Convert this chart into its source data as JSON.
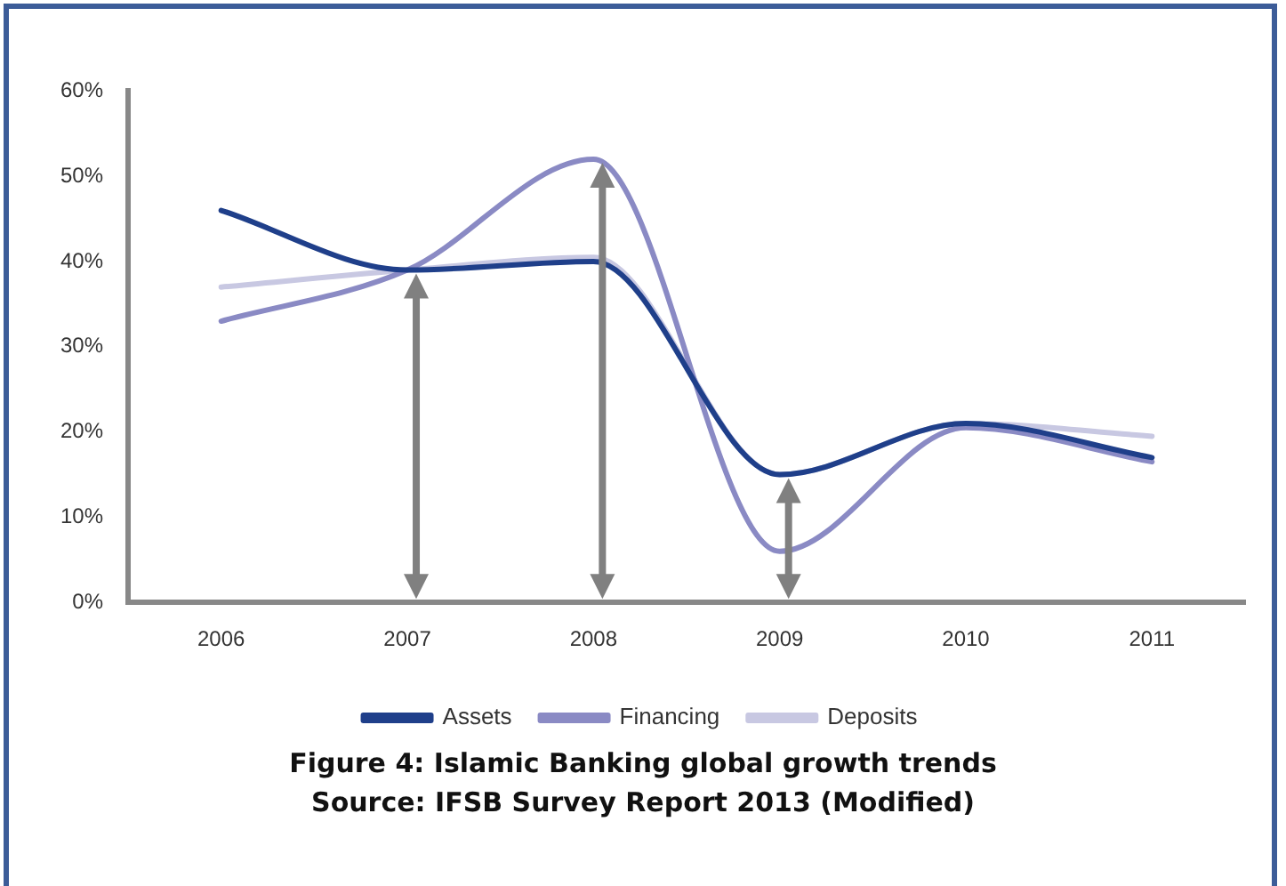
{
  "chart_data": {
    "type": "line",
    "title": "Figure 4: Islamic Banking global growth trends",
    "annotations": [
      "Source: IFSB Survey Report 2013 (Modified)"
    ],
    "categories": [
      "2006",
      "2007",
      "2008",
      "2009",
      "2010",
      "2011"
    ],
    "series": [
      {
        "name": "Assets",
        "color": "#1f3f8a",
        "values": [
          46,
          39,
          40,
          15,
          21,
          17
        ]
      },
      {
        "name": "Financing",
        "color": "#8a8ac4",
        "values": [
          33,
          39,
          52,
          6,
          20.5,
          16.5
        ]
      },
      {
        "name": "Deposits",
        "color": "#c8c8e2",
        "values": [
          37,
          39,
          40.5,
          15,
          21,
          19.5
        ]
      }
    ],
    "ylim": [
      0,
      60
    ],
    "yticks": [
      {
        "value": 0,
        "label": "0%"
      },
      {
        "value": 10,
        "label": "10%"
      },
      {
        "value": 20,
        "label": "20%"
      },
      {
        "value": 30,
        "label": "30%"
      },
      {
        "value": 40,
        "label": "40%"
      },
      {
        "value": 50,
        "label": "50%"
      },
      {
        "value": 60,
        "label": "60%"
      }
    ],
    "grid": false,
    "legend": "bottom",
    "marker": "none",
    "line_style": "solid"
  }
}
